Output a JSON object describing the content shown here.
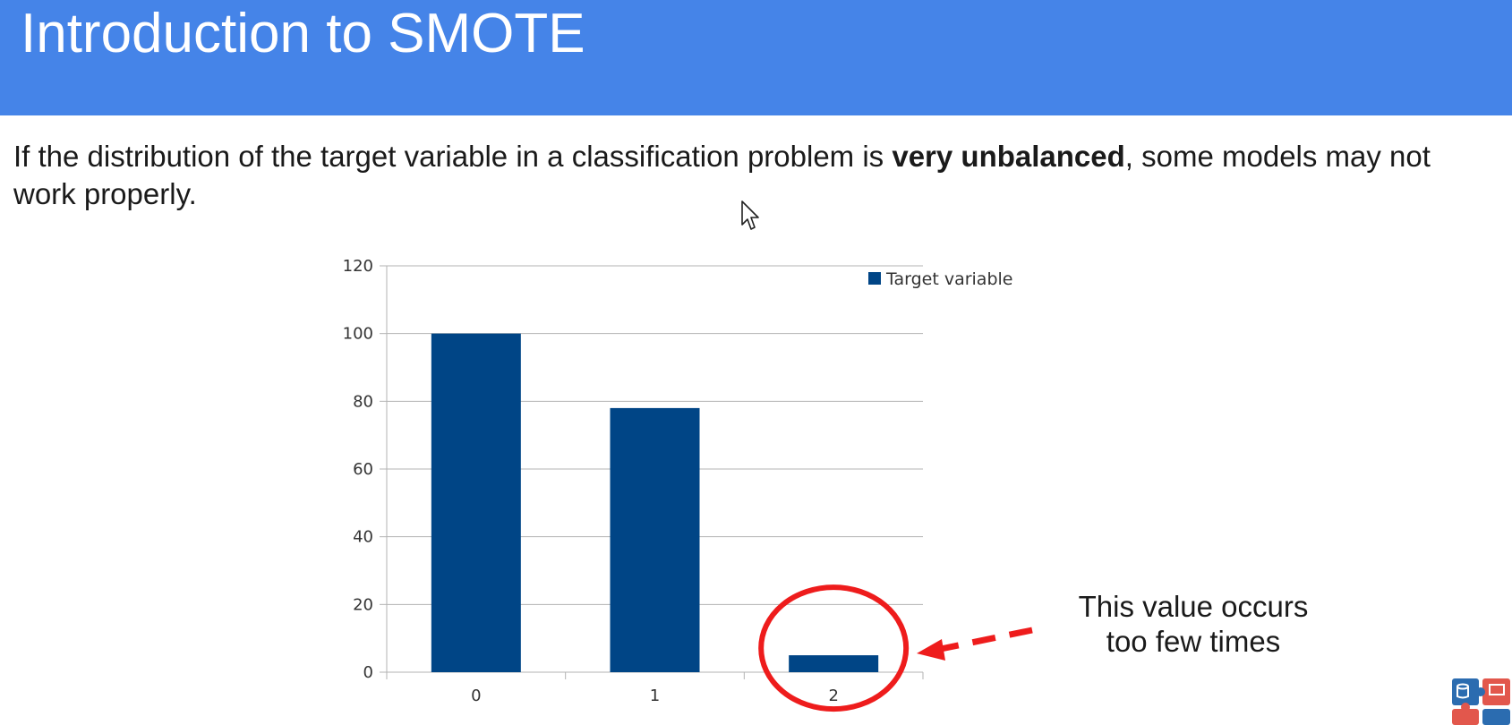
{
  "slide": {
    "title": "Introduction to SMOTE",
    "intro_before": "If the distribution of the target variable in a classification problem is ",
    "intro_bold": "very unbalanced",
    "intro_after": ", some models may not work properly."
  },
  "annotation": {
    "line1": "This value occurs",
    "line2": "too few times"
  },
  "colors": {
    "header": "#4584e8",
    "bar": "#004586",
    "highlight": "#ee1c1c"
  },
  "chart_data": {
    "type": "bar",
    "categories": [
      "0",
      "1",
      "2"
    ],
    "series": [
      {
        "name": "Target variable",
        "values": [
          100,
          78,
          5
        ]
      }
    ],
    "ylim": [
      0,
      120
    ],
    "yticks": [
      0,
      20,
      40,
      60,
      80,
      100,
      120
    ],
    "grid": true,
    "legend": "top-right",
    "highlighted_category": "2"
  }
}
